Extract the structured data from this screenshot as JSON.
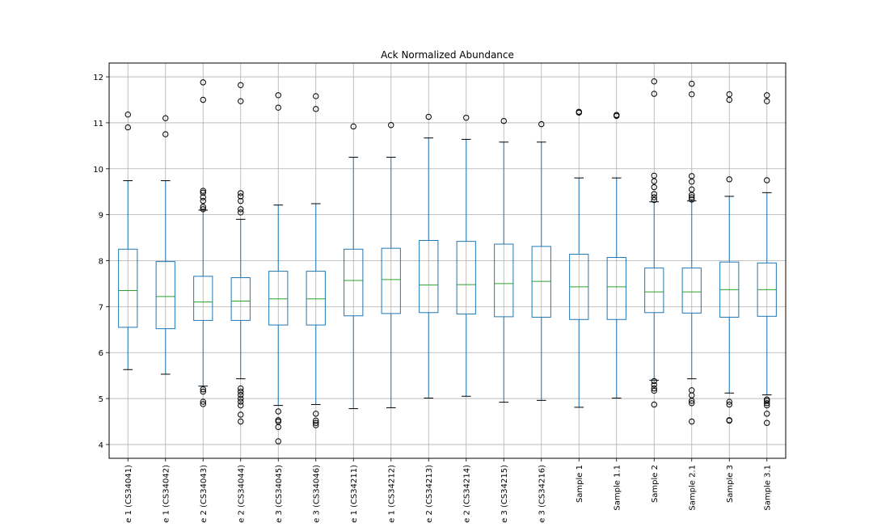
{
  "chart_data": {
    "type": "box",
    "title": "Ack Normalized Abundance",
    "xlabel": "",
    "ylabel": "",
    "ylim": [
      3.7,
      12.3
    ],
    "yticks": [
      4,
      5,
      6,
      7,
      8,
      9,
      10,
      11,
      12
    ],
    "grid": true,
    "colors": {
      "box": "#1f77b4",
      "median": "#2ca02c",
      "whisker": "#1f77b4",
      "cap": "#000000",
      "flier": "#000000",
      "grid": "#b0b0b0"
    },
    "categories": [
      "e 1 (CS34041)",
      "e 1 (CS34042)",
      "e 2 (CS34043)",
      "e 2 (CS34044)",
      "e 3 (CS34045)",
      "e 3 (CS34046)",
      "e 1 (CS34211)",
      "e 1 (CS34212)",
      "e 2 (CS34213)",
      "e 2 (CS34214)",
      "e 3 (CS34215)",
      "e 3 (CS34216)",
      "Sample 1",
      "Sample 1.1",
      "Sample 2",
      "Sample 2.1",
      "Sample 3",
      "Sample 3.1"
    ],
    "boxes": [
      {
        "whislo": 5.63,
        "q1": 6.55,
        "med": 7.35,
        "q3": 8.25,
        "whishi": 9.74,
        "fliers": [
          10.9,
          11.18
        ]
      },
      {
        "whislo": 5.53,
        "q1": 6.52,
        "med": 7.22,
        "q3": 7.98,
        "whishi": 9.74,
        "fliers": [
          10.75,
          11.1
        ]
      },
      {
        "whislo": 5.27,
        "q1": 6.7,
        "med": 7.1,
        "q3": 7.66,
        "whishi": 9.1,
        "fliers": [
          4.88,
          4.93,
          5.15,
          5.2,
          9.12,
          9.17,
          9.3,
          9.38,
          9.48,
          9.52,
          11.5,
          11.88
        ]
      },
      {
        "whislo": 5.43,
        "q1": 6.7,
        "med": 7.12,
        "q3": 7.63,
        "whishi": 8.9,
        "fliers": [
          4.5,
          4.65,
          4.85,
          4.93,
          5.0,
          5.08,
          5.15,
          5.22,
          9.05,
          9.12,
          9.3,
          9.4,
          9.47,
          11.47,
          11.82
        ]
      },
      {
        "whislo": 4.85,
        "q1": 6.6,
        "med": 7.17,
        "q3": 7.77,
        "whishi": 9.21,
        "fliers": [
          4.07,
          4.38,
          4.5,
          4.53,
          4.72,
          11.33,
          11.6
        ]
      },
      {
        "whislo": 4.87,
        "q1": 6.6,
        "med": 7.17,
        "q3": 7.77,
        "whishi": 9.24,
        "fliers": [
          4.42,
          4.47,
          4.52,
          4.67,
          11.3,
          11.58
        ]
      },
      {
        "whislo": 4.78,
        "q1": 6.8,
        "med": 7.57,
        "q3": 8.25,
        "whishi": 10.25,
        "fliers": [
          10.92
        ]
      },
      {
        "whislo": 4.8,
        "q1": 6.85,
        "med": 7.59,
        "q3": 8.27,
        "whishi": 10.25,
        "fliers": [
          10.95
        ]
      },
      {
        "whislo": 5.01,
        "q1": 6.87,
        "med": 7.47,
        "q3": 8.44,
        "whishi": 10.67,
        "fliers": [
          11.13
        ]
      },
      {
        "whislo": 5.05,
        "q1": 6.84,
        "med": 7.48,
        "q3": 8.42,
        "whishi": 10.64,
        "fliers": [
          11.11
        ]
      },
      {
        "whislo": 4.92,
        "q1": 6.78,
        "med": 7.5,
        "q3": 8.36,
        "whishi": 10.58,
        "fliers": [
          11.04
        ]
      },
      {
        "whislo": 4.96,
        "q1": 6.77,
        "med": 7.55,
        "q3": 8.31,
        "whishi": 10.58,
        "fliers": [
          10.97
        ]
      },
      {
        "whislo": 4.81,
        "q1": 6.72,
        "med": 7.43,
        "q3": 8.14,
        "whishi": 9.8,
        "fliers": [
          11.22,
          11.24
        ]
      },
      {
        "whislo": 5.01,
        "q1": 6.72,
        "med": 7.43,
        "q3": 8.07,
        "whishi": 9.8,
        "fliers": [
          11.15,
          11.17
        ]
      },
      {
        "whislo": 5.4,
        "q1": 6.87,
        "med": 7.32,
        "q3": 7.84,
        "whishi": 9.28,
        "fliers": [
          4.87,
          5.17,
          5.22,
          5.3,
          5.38,
          9.32,
          9.38,
          9.45,
          9.6,
          9.73,
          9.85,
          11.63,
          11.9
        ]
      },
      {
        "whislo": 5.43,
        "q1": 6.86,
        "med": 7.32,
        "q3": 7.84,
        "whishi": 9.3,
        "fliers": [
          4.5,
          4.9,
          4.95,
          5.07,
          5.18,
          9.33,
          9.38,
          9.43,
          9.55,
          9.72,
          9.84,
          11.62,
          11.85
        ]
      },
      {
        "whislo": 5.12,
        "q1": 6.77,
        "med": 7.37,
        "q3": 7.97,
        "whishi": 9.4,
        "fliers": [
          4.52,
          4.53,
          4.87,
          4.93,
          9.77,
          11.5,
          11.62
        ]
      },
      {
        "whislo": 5.08,
        "q1": 6.79,
        "med": 7.37,
        "q3": 7.95,
        "whishi": 9.48,
        "fliers": [
          4.47,
          4.67,
          4.85,
          4.9,
          4.95,
          4.98,
          9.75,
          11.47,
          11.6
        ]
      }
    ]
  }
}
